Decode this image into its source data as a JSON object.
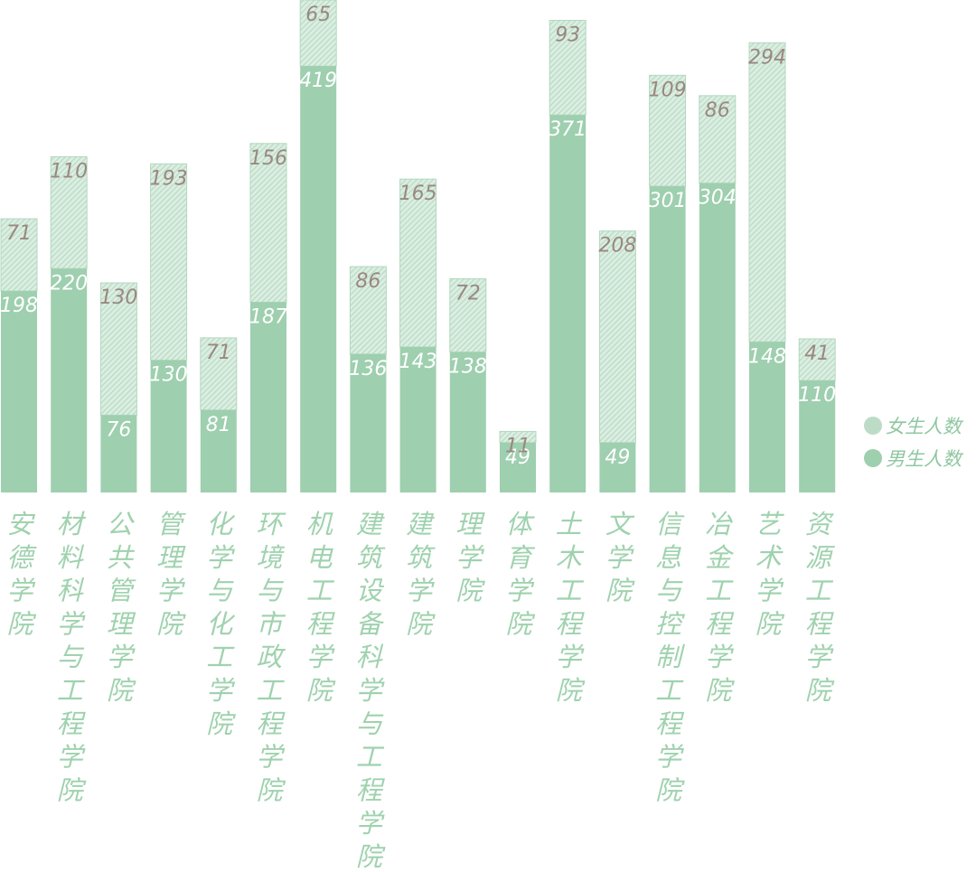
{
  "chart_data": {
    "type": "bar",
    "stacked": true,
    "categories": [
      "安德学院",
      "材料科学与工程学院",
      "公共管理学院",
      "管理学院",
      "化学与化工学院",
      "环境与市政工程学院",
      "机电工程学院",
      "建筑设备科学与工程学院",
      "建筑学院",
      "理学院",
      "体育学院",
      "土木工程学院",
      "文学院",
      "信息与控制工程学院",
      "冶金工程学院",
      "艺术学院",
      "资源工程学院"
    ],
    "series": [
      {
        "name": "男生人数",
        "values": [
          198,
          220,
          76,
          130,
          81,
          187,
          419,
          136,
          143,
          138,
          49,
          371,
          49,
          301,
          304,
          148,
          110
        ]
      },
      {
        "name": "女生人数",
        "values": [
          71,
          110,
          130,
          193,
          71,
          156,
          65,
          86,
          165,
          72,
          11,
          93,
          208,
          109,
          86,
          294,
          41
        ]
      }
    ],
    "legend": {
      "position": "right",
      "items": [
        "女生人数",
        "男生人数"
      ]
    },
    "title": "",
    "xlabel": "",
    "ylabel": "",
    "ylim": [
      0,
      484
    ],
    "grid": false,
    "colors": {
      "male": "#9ecfaf",
      "female_light": "#d8ecdf",
      "female_hatch": "#bddcc7",
      "male_label": "#ffffff",
      "female_label": "#9a8880",
      "category_label": "#9fd2ae",
      "legend_text": "#8fc7a0"
    }
  }
}
